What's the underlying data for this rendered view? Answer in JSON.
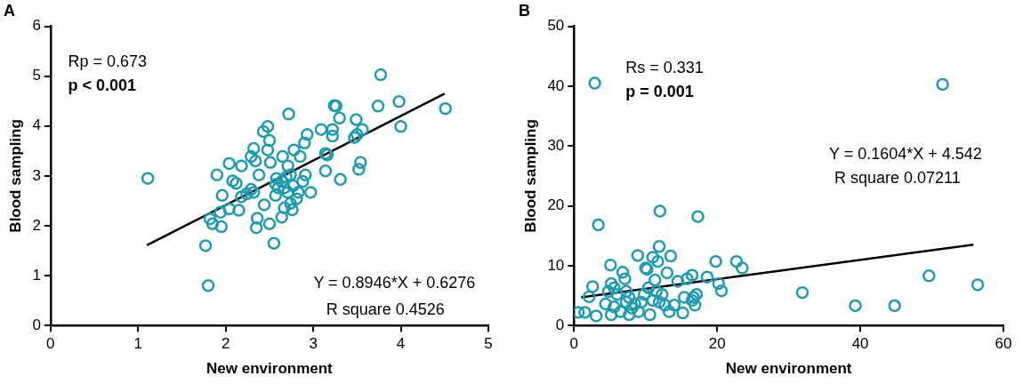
{
  "chart_data": [
    {
      "type": "scatter",
      "title": "A",
      "xlabel": "New environment",
      "ylabel": "Blood sampling",
      "xlim": [
        0,
        5
      ],
      "xticks": [
        0,
        1,
        2,
        3,
        4,
        5
      ],
      "ylim": [
        0,
        6
      ],
      "yticks": [
        0,
        1,
        2,
        3,
        4,
        5,
        6
      ],
      "grid": false,
      "legend": false,
      "annotations": [
        "Rp = 0.673",
        "p < 0.001",
        "Y = 0.8946*X + 0.6276",
        "R square 0.4526"
      ],
      "series": [
        {
          "type": "scatter",
          "marker": "circle",
          "color": "#1f9bb0",
          "x": [
            1.11,
            3.77,
            3.98,
            4.51,
            3.74,
            4.0,
            2.72,
            3.24,
            3.26,
            3.3,
            3.49,
            3.56,
            3.47,
            3.5,
            3.22,
            3.22,
            3.09,
            2.93,
            2.9,
            3.14,
            3.16,
            3.14,
            3.31,
            3.54,
            3.52,
            2.48,
            2.43,
            2.5,
            2.48,
            2.51,
            2.32,
            2.29,
            2.34,
            2.04,
            2.18,
            1.9,
            2.08,
            2.12,
            1.96,
            1.94,
            2.04,
            1.82,
            1.85,
            1.95,
            2.15,
            2.18,
            2.24,
            2.29,
            2.32,
            2.38,
            2.36,
            2.35,
            2.44,
            2.5,
            2.55,
            1.77,
            1.8,
            2.65,
            2.78,
            2.85,
            2.71,
            2.58,
            2.64,
            2.69,
            2.74,
            2.67,
            2.6,
            2.57,
            2.71,
            2.77,
            2.83,
            2.88,
            2.91,
            2.97,
            2.81,
            2.74,
            2.67,
            2.76,
            2.64,
            2.57
          ],
          "values": [
            2.95,
            5.03,
            4.49,
            4.35,
            4.4,
            3.99,
            4.24,
            4.41,
            4.4,
            4.16,
            4.13,
            3.93,
            3.77,
            3.83,
            3.93,
            3.8,
            3.93,
            3.83,
            3.66,
            3.45,
            3.42,
            3.1,
            2.93,
            3.27,
            3.13,
            3.99,
            3.89,
            3.71,
            3.52,
            3.27,
            3.55,
            3.39,
            3.3,
            3.25,
            3.2,
            3.02,
            2.9,
            2.85,
            2.61,
            2.27,
            2.34,
            2.14,
            2.04,
            1.98,
            2.31,
            2.58,
            2.64,
            2.73,
            2.67,
            3.02,
            2.15,
            1.96,
            2.42,
            2.04,
            1.65,
            1.6,
            0.8,
            3.39,
            3.52,
            3.39,
            3.2,
            2.95,
            2.89,
            2.98,
            3.02,
            2.76,
            2.76,
            2.61,
            2.67,
            2.8,
            2.67,
            2.89,
            3.02,
            2.67,
            2.54,
            2.45,
            2.36,
            2.32,
            2.17,
            2.83
          ]
        },
        {
          "type": "line",
          "color": "#000000",
          "x": [
            1.1,
            4.5
          ],
          "values": [
            1.61,
            4.65
          ]
        }
      ]
    },
    {
      "type": "scatter",
      "title": "B",
      "xlabel": "New environment",
      "ylabel": "Blood sampling",
      "xlim": [
        0,
        60
      ],
      "xticks": [
        0,
        20,
        40,
        60
      ],
      "ylim": [
        0,
        50
      ],
      "yticks": [
        0,
        10,
        20,
        30,
        40,
        50
      ],
      "grid": false,
      "legend": false,
      "annotations": [
        "Rs = 0.331",
        "p = 0.001",
        "Y = 0.1604*X + 4.542",
        "R square 0.07211"
      ],
      "series": [
        {
          "type": "scatter",
          "marker": "circle",
          "color": "#1f9bb0",
          "x": [
            2.9,
            51.5,
            3.4,
            12.0,
            17.3,
            49.6,
            56.4,
            31.9,
            39.3,
            44.8,
            19.8,
            22.7,
            23.5,
            20.6,
            20.2,
            18.6,
            16.5,
            11.9,
            11.0,
            11.7,
            8.9,
            13.5,
            10.0,
            10.2,
            5.1,
            6.8,
            7.1,
            13.0,
            14.5,
            11.3,
            2.6,
            2.1,
            0.6,
            1.5,
            3.1,
            5.2,
            5.6,
            4.8,
            6.0,
            7.3,
            7.7,
            4.4,
            5.6,
            6.5,
            5.2,
            7.7,
            9.0,
            9.8,
            9.4,
            10.6,
            11.0,
            11.9,
            12.7,
            13.3,
            14.0,
            15.2,
            15.4,
            16.5,
            17.1,
            16.9,
            16.7,
            10.4,
            11.5,
            12.3,
            15.8,
            7.3,
            8.1,
            8.5
          ],
          "values": [
            40.5,
            40.3,
            16.8,
            19.1,
            18.2,
            8.3,
            6.8,
            5.5,
            3.3,
            3.3,
            10.7,
            10.7,
            9.6,
            5.8,
            7.0,
            8.1,
            8.4,
            13.2,
            11.4,
            10.7,
            11.7,
            11.6,
            9.6,
            9.4,
            10.1,
            8.9,
            7.8,
            8.8,
            7.4,
            7.6,
            6.5,
            4.8,
            2.2,
            2.2,
            1.6,
            7.0,
            6.3,
            5.7,
            5.2,
            5.7,
            4.7,
            3.6,
            3.1,
            2.3,
            1.8,
            1.8,
            2.3,
            5.2,
            3.9,
            1.8,
            4.2,
            3.9,
            3.4,
            2.3,
            3.4,
            2.1,
            4.7,
            4.2,
            5.2,
            3.4,
            4.7,
            6.3,
            5.7,
            5.2,
            7.8,
            3.9,
            2.9,
            3.6
          ]
        },
        {
          "type": "line",
          "color": "#000000",
          "x": [
            1.0,
            55.8
          ],
          "values": [
            4.7,
            13.5
          ]
        }
      ]
    }
  ]
}
